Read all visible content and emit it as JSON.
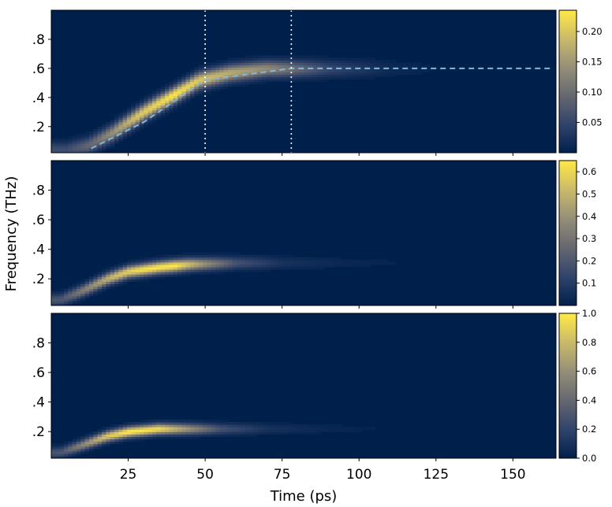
{
  "chart_data": {
    "type": "heatmap",
    "shared_xlabel": "Time (ps)",
    "shared_ylabel": "Frequency (THz)",
    "x_ticks": [
      25,
      50,
      75,
      100,
      125,
      150
    ],
    "y_ticks": [
      ".2",
      ".4",
      ".6",
      ".8"
    ],
    "y_tick_values": [
      0.2,
      0.4,
      0.6,
      0.8
    ],
    "xlim": [
      0,
      164
    ],
    "ylim": [
      0.02,
      1.0
    ],
    "colormap": [
      "#00204c",
      "#31446b",
      "#666870",
      "#958f78",
      "#cbba69",
      "#ffe945"
    ],
    "panels": [
      {
        "colorbar": {
          "min": 0.0,
          "max": 0.235,
          "ticks": [
            "0.05",
            "0.10",
            "0.15",
            "0.20"
          ],
          "tick_values": [
            0.05,
            0.1,
            0.15,
            0.2
          ]
        },
        "ridge": [
          [
            5,
            0.04
          ],
          [
            12,
            0.07
          ],
          [
            20,
            0.16
          ],
          [
            30,
            0.3
          ],
          [
            40,
            0.42
          ],
          [
            48,
            0.52
          ],
          [
            58,
            0.57
          ],
          [
            70,
            0.6
          ],
          [
            85,
            0.6
          ],
          [
            120,
            0.6
          ],
          [
            164,
            0.6
          ]
        ],
        "ridge_peak": [
          [
            5,
            0.25
          ],
          [
            15,
            0.45
          ],
          [
            28,
            0.85
          ],
          [
            40,
            0.98
          ],
          [
            52,
            0.8
          ],
          [
            65,
            0.65
          ],
          [
            78,
            0.45
          ],
          [
            90,
            0.22
          ],
          [
            110,
            0.06
          ],
          [
            130,
            0.01
          ],
          [
            164,
            0.0
          ]
        ],
        "ridge_width": 0.055,
        "overlay_dashed_line": [
          [
            13,
            0.05
          ],
          [
            30,
            0.23
          ],
          [
            50,
            0.52
          ],
          [
            57,
            0.54
          ],
          [
            78,
            0.6
          ],
          [
            162,
            0.6
          ]
        ],
        "vertical_markers": [
          50,
          78
        ]
      },
      {
        "colorbar": {
          "min": 0.0,
          "max": 0.65,
          "ticks": [
            "0.1",
            "0.2",
            "0.3",
            "0.4",
            "0.5",
            "0.6"
          ],
          "tick_values": [
            0.1,
            0.2,
            0.3,
            0.4,
            0.5,
            0.6
          ]
        },
        "ridge": [
          [
            3,
            0.06
          ],
          [
            10,
            0.12
          ],
          [
            18,
            0.2
          ],
          [
            25,
            0.25
          ],
          [
            35,
            0.28
          ],
          [
            45,
            0.3
          ],
          [
            60,
            0.31
          ],
          [
            80,
            0.31
          ],
          [
            120,
            0.31
          ],
          [
            164,
            0.31
          ]
        ],
        "ridge_peak": [
          [
            3,
            0.3
          ],
          [
            10,
            0.5
          ],
          [
            20,
            0.8
          ],
          [
            30,
            0.97
          ],
          [
            40,
            1.0
          ],
          [
            50,
            0.6
          ],
          [
            60,
            0.28
          ],
          [
            75,
            0.1
          ],
          [
            95,
            0.04
          ],
          [
            130,
            0.01
          ],
          [
            164,
            0.0
          ]
        ],
        "ridge_width": 0.04,
        "overlay_dashed_line": [],
        "vertical_markers": []
      },
      {
        "colorbar": {
          "min": 0.0,
          "max": 1.0,
          "ticks": [
            "0.0",
            "0.2",
            "0.4",
            "0.6",
            "0.8",
            "1.0"
          ],
          "tick_values": [
            0.0,
            0.2,
            0.4,
            0.6,
            0.8,
            1.0
          ]
        },
        "ridge": [
          [
            3,
            0.06
          ],
          [
            10,
            0.11
          ],
          [
            18,
            0.17
          ],
          [
            25,
            0.2
          ],
          [
            35,
            0.22
          ],
          [
            50,
            0.22
          ],
          [
            80,
            0.22
          ],
          [
            164,
            0.22
          ]
        ],
        "ridge_peak": [
          [
            3,
            0.3
          ],
          [
            10,
            0.55
          ],
          [
            18,
            0.85
          ],
          [
            25,
            1.0
          ],
          [
            35,
            0.95
          ],
          [
            45,
            0.6
          ],
          [
            55,
            0.28
          ],
          [
            70,
            0.1
          ],
          [
            90,
            0.04
          ],
          [
            120,
            0.01
          ],
          [
            164,
            0.0
          ]
        ],
        "ridge_width": 0.035,
        "overlay_dashed_line": [],
        "vertical_markers": []
      }
    ]
  }
}
